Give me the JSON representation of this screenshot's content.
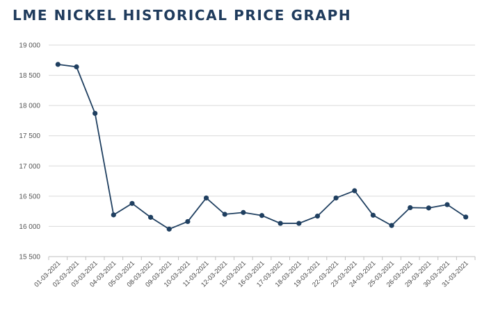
{
  "chart_data": {
    "type": "line",
    "title": "LME NICKEL HISTORICAL PRICE GRAPH",
    "xlabel": "",
    "ylabel": "",
    "ylim": [
      15500,
      19000
    ],
    "yticks": [
      15500,
      16000,
      16500,
      17000,
      17500,
      18000,
      18500,
      19000
    ],
    "ytick_labels": [
      "15 500",
      "16 000",
      "16 500",
      "17 000",
      "17 500",
      "18 000",
      "18 500",
      "19 000"
    ],
    "grid": true,
    "legend": "none",
    "line_color": "#1f3f60",
    "categories": [
      "01-03-2021",
      "02-03-2021",
      "03-03-2021",
      "04-03-2021",
      "05-03-2021",
      "08-03-2021",
      "09-03-2021",
      "10-03-2021",
      "11-03-2021",
      "12-03-2021",
      "15-03-2021",
      "16-03-2021",
      "17-03-2021",
      "18-03-2021",
      "19-03-2021",
      "22-03-2021",
      "23-03-2021",
      "24-03-2021",
      "25-03-2021",
      "26-03-2021",
      "29-03-2021",
      "30-03-2021",
      "31-03-2021"
    ],
    "series": [
      {
        "values": [
          18680,
          18640,
          17870,
          16190,
          16380,
          16150,
          15955,
          16080,
          16470,
          16200,
          16230,
          16180,
          16050,
          16050,
          16170,
          16470,
          16590,
          16185,
          16015,
          16310,
          16305,
          16360,
          16155
        ]
      }
    ]
  }
}
